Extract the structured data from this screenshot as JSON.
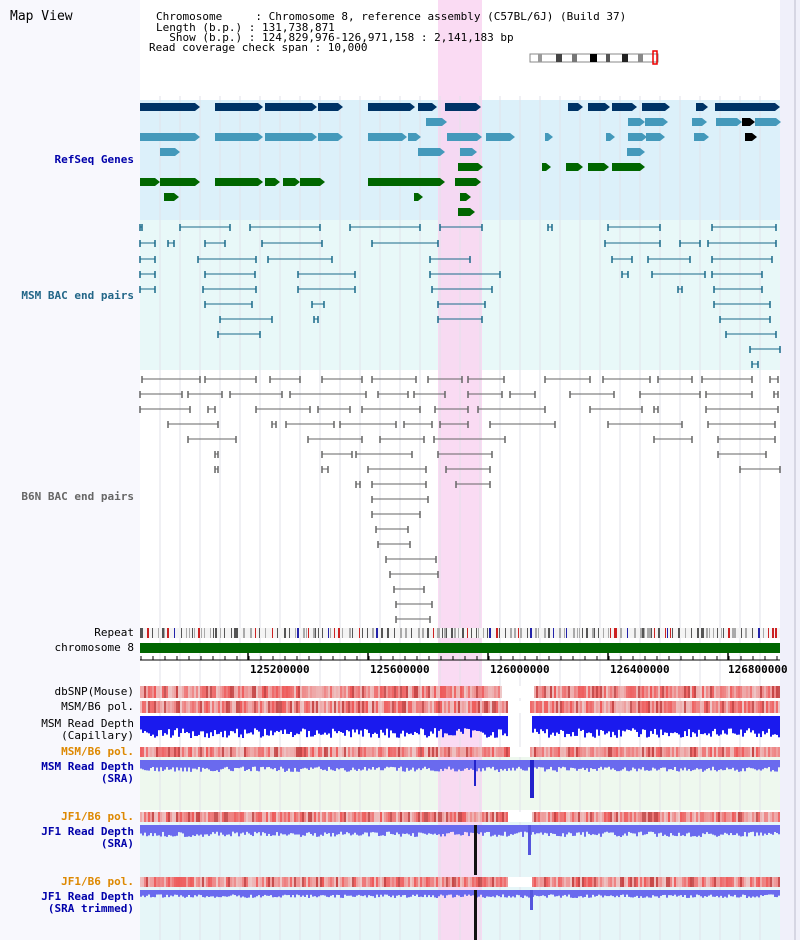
{
  "header": {
    "title": "Map View",
    "info_lines": [
      "Chromosome     : Chromosome 8, reference assembly (C57BL/6J) (Build 37)",
      "Length (b.p.) : 131,738,871",
      "  Show (b.p.) : 124,829,976-126,971,158 : 2,141,183 bp",
      "Read coverage check span : 10,000"
    ]
  },
  "tracks": {
    "refseq": {
      "label": "RefSeq Genes",
      "color": "#0000aa"
    },
    "msm_bac": {
      "label": "MSM BAC end pairs",
      "color": "#226688"
    },
    "b6n_bac": {
      "label": "B6N BAC end pairs",
      "color": "#666666"
    },
    "repeat": {
      "label": "Repeat"
    },
    "chromosome": {
      "label": "chromosome 8"
    },
    "dbsnp": {
      "label": "dbSNP(Mouse)"
    },
    "msm_b6_pol_1": {
      "label": "MSM/B6 pol."
    },
    "msm_read_depth_cap": {
      "label1": "MSM Read Depth",
      "label2": "(Capillary)"
    },
    "msm_b6_pol_2": {
      "label": "MSM/B6 pol.",
      "color": "#dd8800"
    },
    "msm_read_depth_sra": {
      "label1": "MSM Read Depth",
      "label2": "(SRA)",
      "color": "#0000aa"
    },
    "jf1_b6_pol_1": {
      "label": "JF1/B6 pol.",
      "color": "#dd8800"
    },
    "jf1_read_depth_sra": {
      "label1": "JF1 Read Depth",
      "label2": "(SRA)",
      "color": "#0000aa"
    },
    "jf1_b6_pol_2": {
      "label": "JF1/B6 pol.",
      "color": "#dd8800"
    },
    "jf1_read_depth_trim": {
      "label1": "JF1 Read Depth",
      "label2": "(SRA trimmed)",
      "color": "#0000aa"
    }
  },
  "axis": {
    "ticks": [
      "125200000",
      "125600000",
      "126000000",
      "126400000",
      "126800000"
    ]
  },
  "colors": {
    "refseq_bg": "#dcf0fa",
    "msm_bg": "#e8f8f8",
    "highlight": "#f9d5f1",
    "gene_dark": "#003366",
    "gene_mid": "#4499bb",
    "gene_green": "#006600",
    "depth_blue": "#2222dd",
    "depth_light": "#7777ee",
    "chromosome": "#006600"
  }
}
